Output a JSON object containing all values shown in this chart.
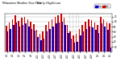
{
  "title": "Milwaukee Weather Dew Point",
  "subtitle": "Daily High/Low",
  "high_color": "#cc0000",
  "low_color": "#0000cc",
  "background_color": "#ffffff",
  "grid_color": "#aaaaaa",
  "ylim": [
    0,
    75
  ],
  "yticks": [
    10,
    20,
    30,
    40,
    50,
    60,
    70
  ],
  "high_values": [
    52,
    58,
    65,
    72,
    62,
    68,
    70,
    65,
    60,
    55,
    43,
    36,
    40,
    53,
    60,
    65,
    70,
    72,
    75,
    68,
    53,
    40,
    33,
    36,
    46,
    53,
    60,
    65,
    63,
    58,
    53,
    70,
    65,
    58,
    56
  ],
  "low_values": [
    40,
    46,
    53,
    58,
    50,
    53,
    56,
    50,
    46,
    42,
    30,
    23,
    26,
    40,
    46,
    50,
    56,
    58,
    60,
    53,
    38,
    26,
    18,
    20,
    33,
    40,
    46,
    50,
    48,
    43,
    38,
    56,
    50,
    43,
    8
  ],
  "x_labels": [
    "4/1",
    "4/2",
    "4/3",
    "4/4",
    "4/5",
    "4/6",
    "4/7",
    "4/8",
    "4/9",
    "4/10",
    "4/11",
    "4/12",
    "4/13",
    "4/14",
    "4/15",
    "4/16",
    "4/17",
    "4/18",
    "4/19",
    "4/20",
    "4/21",
    "4/22",
    "4/23",
    "4/24",
    "4/25",
    "4/26",
    "4/27",
    "4/28",
    "4/29",
    "4/30",
    "5/1",
    "5/2",
    "5/3",
    "5/4",
    "5/5"
  ],
  "dashed_vlines": [
    20.5,
    21.5,
    22.5,
    23.5
  ],
  "legend_high": "High",
  "legend_low": "Low",
  "bar_width": 0.4,
  "ylabel_right": true
}
